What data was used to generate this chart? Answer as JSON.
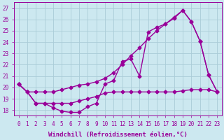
{
  "line1_x": [
    0,
    1,
    2,
    3,
    4,
    5,
    6,
    7,
    8,
    9,
    10,
    11,
    12,
    13,
    14,
    15,
    16,
    17,
    18,
    19,
    20,
    21,
    22,
    23
  ],
  "line1_y": [
    20.3,
    19.6,
    18.6,
    18.6,
    18.2,
    17.9,
    17.8,
    17.8,
    18.3,
    18.6,
    20.3,
    20.6,
    22.3,
    22.5,
    21.0,
    24.9,
    25.3,
    25.6,
    26.1,
    26.8,
    25.8,
    24.1,
    21.1,
    19.6
  ],
  "line2_x": [
    0,
    1,
    2,
    3,
    4,
    5,
    6,
    7,
    8,
    9,
    10,
    11,
    12,
    13,
    14,
    15,
    16,
    17,
    18,
    19,
    20,
    21,
    22,
    23
  ],
  "line2_y": [
    20.3,
    19.6,
    19.6,
    19.6,
    19.6,
    19.8,
    20.0,
    20.2,
    20.3,
    20.5,
    20.8,
    21.3,
    22.0,
    22.8,
    23.5,
    24.3,
    25.0,
    25.6,
    26.2,
    26.8,
    25.8,
    24.1,
    21.1,
    19.6
  ],
  "line3_x": [
    0,
    1,
    2,
    3,
    4,
    5,
    6,
    7,
    8,
    9,
    10,
    11,
    12,
    13,
    14,
    15,
    16,
    17,
    18,
    19,
    20,
    21,
    22,
    23
  ],
  "line3_y": [
    20.3,
    19.6,
    18.6,
    18.6,
    18.6,
    18.6,
    18.6,
    18.8,
    19.0,
    19.2,
    19.5,
    19.6,
    19.6,
    19.6,
    19.6,
    19.6,
    19.6,
    19.6,
    19.6,
    19.7,
    19.8,
    19.8,
    19.8,
    19.6
  ],
  "line_color": "#990099",
  "bg_color": "#cce8f0",
  "grid_color": "#aaccd8",
  "xlabel": "Windchill (Refroidissement éolien,°C)",
  "xlim": [
    -0.5,
    23.5
  ],
  "ylim": [
    17.5,
    27.5
  ],
  "yticks": [
    18,
    19,
    20,
    21,
    22,
    23,
    24,
    25,
    26,
    27
  ],
  "xticks": [
    0,
    1,
    2,
    3,
    4,
    5,
    6,
    7,
    8,
    9,
    10,
    11,
    12,
    13,
    14,
    15,
    16,
    17,
    18,
    19,
    20,
    21,
    22,
    23
  ],
  "marker": "D",
  "marker_size": 2.5,
  "line_width": 1.0,
  "label_fontsize": 6.5,
  "tick_fontsize": 5.5
}
